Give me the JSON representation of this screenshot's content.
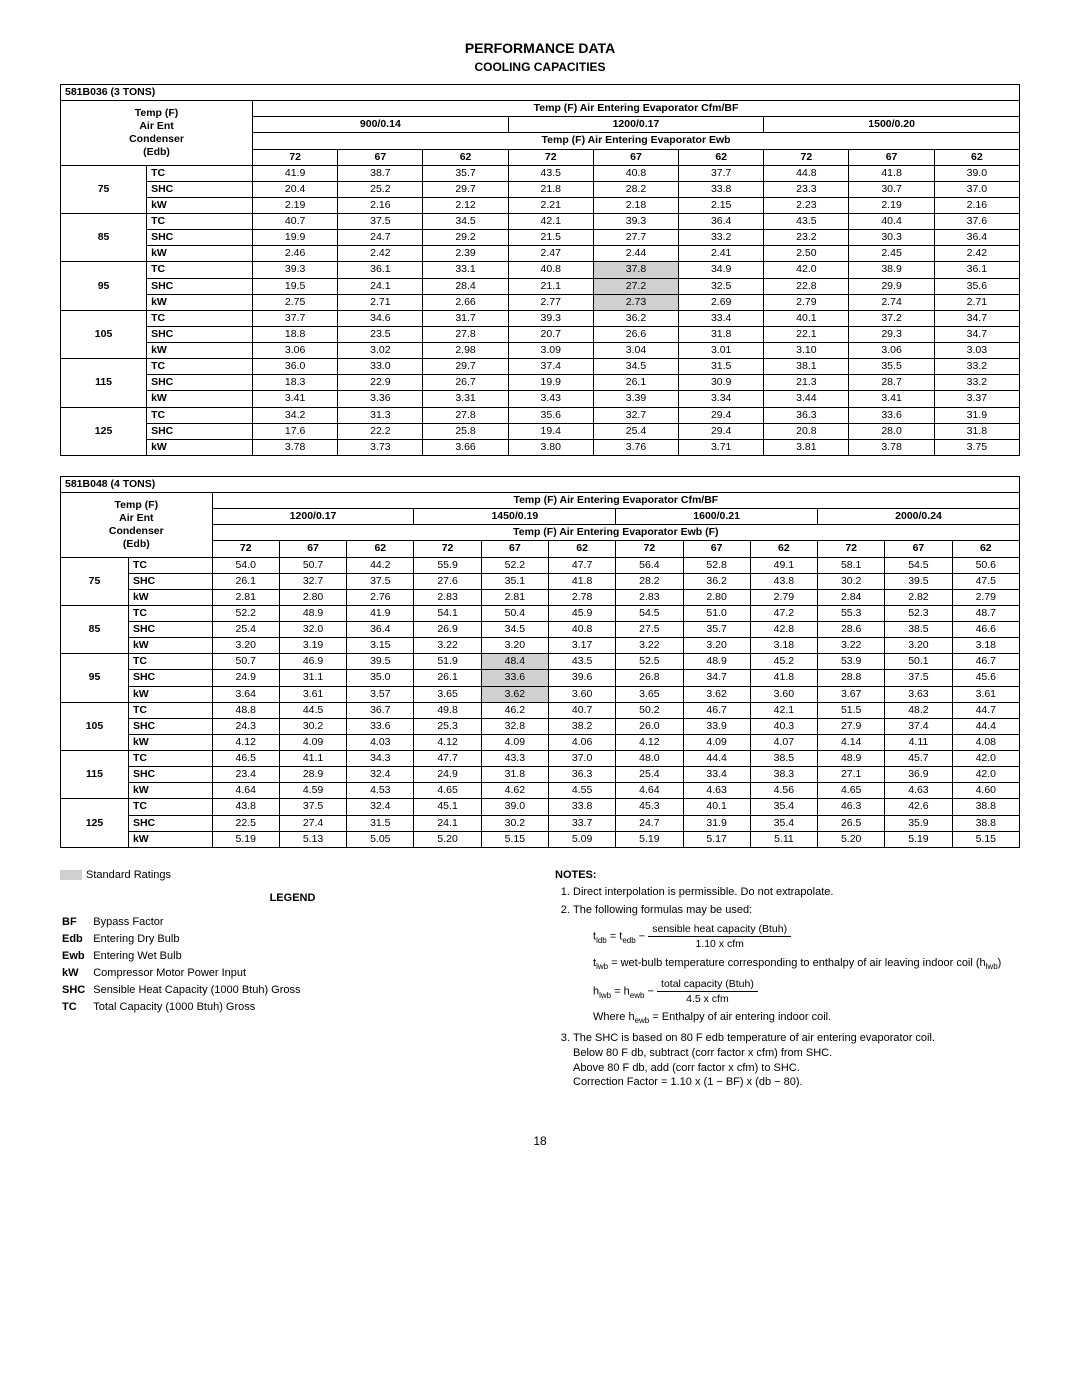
{
  "page": {
    "title": "PERFORMANCE DATA",
    "subtitle": "COOLING CAPACITIES",
    "number": "18"
  },
  "tables": [
    {
      "model": "581B036 (3 TONS)",
      "header_line1": "Temp (F) Air Entering Evaporator      Cfm/BF",
      "cfm_groups": [
        "900/0.14",
        "1200/0.17",
        "1500/0.20"
      ],
      "header_line2": "Temp (F) Air Entering Evaporator      Ewb",
      "ewb_cols": [
        "72",
        "67",
        "62",
        "72",
        "67",
        "62",
        "72",
        "67",
        "62"
      ],
      "row_label_lines": [
        "Temp (F)",
        "Air Ent",
        "Condenser",
        "(Edb)"
      ],
      "metrics": [
        "TC",
        "SHC",
        "kW"
      ],
      "rows": [
        {
          "temp": "75",
          "vals": [
            [
              "41.9",
              "38.7",
              "35.7",
              "43.5",
              "40.8",
              "37.7",
              "44.8",
              "41.8",
              "39.0"
            ],
            [
              "20.4",
              "25.2",
              "29.7",
              "21.8",
              "28.2",
              "33.8",
              "23.3",
              "30.7",
              "37.0"
            ],
            [
              "2.19",
              "2.16",
              "2.12",
              "2.21",
              "2.18",
              "2.15",
              "2.23",
              "2.19",
              "2.16"
            ]
          ]
        },
        {
          "temp": "85",
          "vals": [
            [
              "40.7",
              "37.5",
              "34.5",
              "42.1",
              "39.3",
              "36.4",
              "43.5",
              "40.4",
              "37.6"
            ],
            [
              "19.9",
              "24.7",
              "29.2",
              "21.5",
              "27.7",
              "33.2",
              "23.2",
              "30.3",
              "36.4"
            ],
            [
              "2.46",
              "2.42",
              "2.39",
              "2.47",
              "2.44",
              "2.41",
              "2.50",
              "2.45",
              "2.42"
            ]
          ]
        },
        {
          "temp": "95",
          "vals": [
            [
              "39.3",
              "36.1",
              "33.1",
              "40.8",
              "37.8",
              "34.9",
              "42.0",
              "38.9",
              "36.1"
            ],
            [
              "19.5",
              "24.1",
              "28.4",
              "21.1",
              "27.2",
              "32.5",
              "22.8",
              "29.9",
              "35.6"
            ],
            [
              "2.75",
              "2.71",
              "2.66",
              "2.77",
              "2.73",
              "2.69",
              "2.79",
              "2.74",
              "2.71"
            ]
          ],
          "shade": [
            4
          ]
        },
        {
          "temp": "105",
          "vals": [
            [
              "37.7",
              "34.6",
              "31.7",
              "39.3",
              "36.2",
              "33.4",
              "40.1",
              "37.2",
              "34.7"
            ],
            [
              "18.8",
              "23.5",
              "27.8",
              "20.7",
              "26.6",
              "31.8",
              "22.1",
              "29.3",
              "34.7"
            ],
            [
              "3.06",
              "3.02",
              "2.98",
              "3.09",
              "3.04",
              "3.01",
              "3.10",
              "3.06",
              "3.03"
            ]
          ]
        },
        {
          "temp": "115",
          "vals": [
            [
              "36.0",
              "33.0",
              "29.7",
              "37.4",
              "34.5",
              "31.5",
              "38.1",
              "35.5",
              "33.2"
            ],
            [
              "18.3",
              "22.9",
              "26.7",
              "19.9",
              "26.1",
              "30.9",
              "21.3",
              "28.7",
              "33.2"
            ],
            [
              "3.41",
              "3.36",
              "3.31",
              "3.43",
              "3.39",
              "3.34",
              "3.44",
              "3.41",
              "3.37"
            ]
          ]
        },
        {
          "temp": "125",
          "vals": [
            [
              "34.2",
              "31.3",
              "27.8",
              "35.6",
              "32.7",
              "29.4",
              "36.3",
              "33.6",
              "31.9"
            ],
            [
              "17.6",
              "22.2",
              "25.8",
              "19.4",
              "25.4",
              "29.4",
              "20.8",
              "28.0",
              "31.8"
            ],
            [
              "3.78",
              "3.73",
              "3.66",
              "3.80",
              "3.76",
              "3.71",
              "3.81",
              "3.78",
              "3.75"
            ]
          ]
        }
      ]
    },
    {
      "model": "581B048 (4 TONS)",
      "header_line1": "Temp (F) Air Entering Evaporator      Cfm/BF",
      "cfm_groups": [
        "1200/0.17",
        "1450/0.19",
        "1600/0.21",
        "2000/0.24"
      ],
      "header_line2": "Temp (F) Air Entering Evaporator      Ewb (F)",
      "ewb_cols": [
        "72",
        "67",
        "62",
        "72",
        "67",
        "62",
        "72",
        "67",
        "62",
        "72",
        "67",
        "62"
      ],
      "row_label_lines": [
        "Temp (F)",
        "Air Ent",
        "Condenser",
        "(Edb)"
      ],
      "metrics": [
        "TC",
        "SHC",
        "kW"
      ],
      "rows": [
        {
          "temp": "75",
          "vals": [
            [
              "54.0",
              "50.7",
              "44.2",
              "55.9",
              "52.2",
              "47.7",
              "56.4",
              "52.8",
              "49.1",
              "58.1",
              "54.5",
              "50.6"
            ],
            [
              "26.1",
              "32.7",
              "37.5",
              "27.6",
              "35.1",
              "41.8",
              "28.2",
              "36.2",
              "43.8",
              "30.2",
              "39.5",
              "47.5"
            ],
            [
              "2.81",
              "2.80",
              "2.76",
              "2.83",
              "2.81",
              "2.78",
              "2.83",
              "2.80",
              "2.79",
              "2.84",
              "2.82",
              "2.79"
            ]
          ]
        },
        {
          "temp": "85",
          "vals": [
            [
              "52.2",
              "48.9",
              "41.9",
              "54.1",
              "50.4",
              "45.9",
              "54.5",
              "51.0",
              "47.2",
              "55.3",
              "52.3",
              "48.7"
            ],
            [
              "25.4",
              "32.0",
              "36.4",
              "26.9",
              "34.5",
              "40.8",
              "27.5",
              "35.7",
              "42.8",
              "28.6",
              "38.5",
              "46.6"
            ],
            [
              "3.20",
              "3.19",
              "3.15",
              "3.22",
              "3.20",
              "3.17",
              "3.22",
              "3.20",
              "3.18",
              "3.22",
              "3.20",
              "3.18"
            ]
          ]
        },
        {
          "temp": "95",
          "vals": [
            [
              "50.7",
              "46.9",
              "39.5",
              "51.9",
              "48.4",
              "43.5",
              "52.5",
              "48.9",
              "45.2",
              "53.9",
              "50.1",
              "46.7"
            ],
            [
              "24.9",
              "31.1",
              "35.0",
              "26.1",
              "33.6",
              "39.6",
              "26.8",
              "34.7",
              "41.8",
              "28.8",
              "37.5",
              "45.6"
            ],
            [
              "3.64",
              "3.61",
              "3.57",
              "3.65",
              "3.62",
              "3.60",
              "3.65",
              "3.62",
              "3.60",
              "3.67",
              "3.63",
              "3.61"
            ]
          ],
          "shade": [
            4
          ]
        },
        {
          "temp": "105",
          "vals": [
            [
              "48.8",
              "44.5",
              "36.7",
              "49.8",
              "46.2",
              "40.7",
              "50.2",
              "46.7",
              "42.1",
              "51.5",
              "48.2",
              "44.7"
            ],
            [
              "24.3",
              "30.2",
              "33.6",
              "25.3",
              "32.8",
              "38.2",
              "26.0",
              "33.9",
              "40.3",
              "27.9",
              "37.4",
              "44.4"
            ],
            [
              "4.12",
              "4.09",
              "4.03",
              "4.12",
              "4.09",
              "4.06",
              "4.12",
              "4.09",
              "4.07",
              "4.14",
              "4.11",
              "4.08"
            ]
          ]
        },
        {
          "temp": "115",
          "vals": [
            [
              "46.5",
              "41.1",
              "34.3",
              "47.7",
              "43.3",
              "37.0",
              "48.0",
              "44.4",
              "38.5",
              "48.9",
              "45.7",
              "42.0"
            ],
            [
              "23.4",
              "28.9",
              "32.4",
              "24.9",
              "31.8",
              "36.3",
              "25.4",
              "33.4",
              "38.3",
              "27.1",
              "36.9",
              "42.0"
            ],
            [
              "4.64",
              "4.59",
              "4.53",
              "4.65",
              "4.62",
              "4.55",
              "4.64",
              "4.63",
              "4.56",
              "4.65",
              "4.63",
              "4.60"
            ]
          ]
        },
        {
          "temp": "125",
          "vals": [
            [
              "43.8",
              "37.5",
              "32.4",
              "45.1",
              "39.0",
              "33.8",
              "45.3",
              "40.1",
              "35.4",
              "46.3",
              "42.6",
              "38.8"
            ],
            [
              "22.5",
              "27.4",
              "31.5",
              "24.1",
              "30.2",
              "33.7",
              "24.7",
              "31.9",
              "35.4",
              "26.5",
              "35.9",
              "38.8"
            ],
            [
              "5.19",
              "5.13",
              "5.05",
              "5.20",
              "5.15",
              "5.09",
              "5.19",
              "5.17",
              "5.11",
              "5.20",
              "5.19",
              "5.15"
            ]
          ]
        }
      ]
    }
  ],
  "std_ratings_label": "Standard Ratings",
  "legend": {
    "title": "LEGEND",
    "items": [
      {
        "abbr": "BF",
        "def": "Bypass Factor"
      },
      {
        "abbr": "Edb",
        "def": "Entering Dry Bulb"
      },
      {
        "abbr": "Ewb",
        "def": "Entering Wet Bulb"
      },
      {
        "abbr": "kW",
        "def": "Compressor Motor Power Input"
      },
      {
        "abbr": "SHC",
        "def": "Sensible Heat Capacity (1000 Btuh) Gross"
      },
      {
        "abbr": "TC",
        "def": "Total Capacity (1000 Btuh) Gross"
      }
    ]
  },
  "notes": {
    "title": "NOTES:",
    "n1": "Direct interpolation is permissible. Do not extrapolate.",
    "n2": "The following formulas may be used:",
    "f1_left": "t",
    "f1_sub1": "ldb",
    "f1_eq": " =  t",
    "f1_sub2": "edb",
    "f1_minus": " − ",
    "f1_num": "sensible heat capacity (Btuh)",
    "f1_den": "1.10 x cfm",
    "f2_left": "t",
    "f2_sub": "lwb",
    "f2_text": " =  wet-bulb temperature corresponding to enthalpy of air leaving indoor coil (h",
    "f2_sub2": "lwb",
    "f2_close": ")",
    "f3_left": "h",
    "f3_sub1": "lwb",
    "f3_eq": " =  h",
    "f3_sub2": "ewb",
    "f3_minus": " − ",
    "f3_num": "total capacity (Btuh)",
    "f3_den": "4.5 x cfm",
    "where": "Where  h",
    "where_sub": "ewb",
    "where_rest": " = Enthalpy of air entering indoor coil.",
    "n3a": "The SHC is based on 80 F edb temperature of air entering evaporator coil.",
    "n3b": "Below 80 F db, subtract (corr factor x cfm) from SHC.",
    "n3c": "Above 80 F db, add (corr factor x cfm) to SHC.",
    "n3d": "Correction Factor = 1.10 x (1 − BF) x (db − 80)."
  }
}
